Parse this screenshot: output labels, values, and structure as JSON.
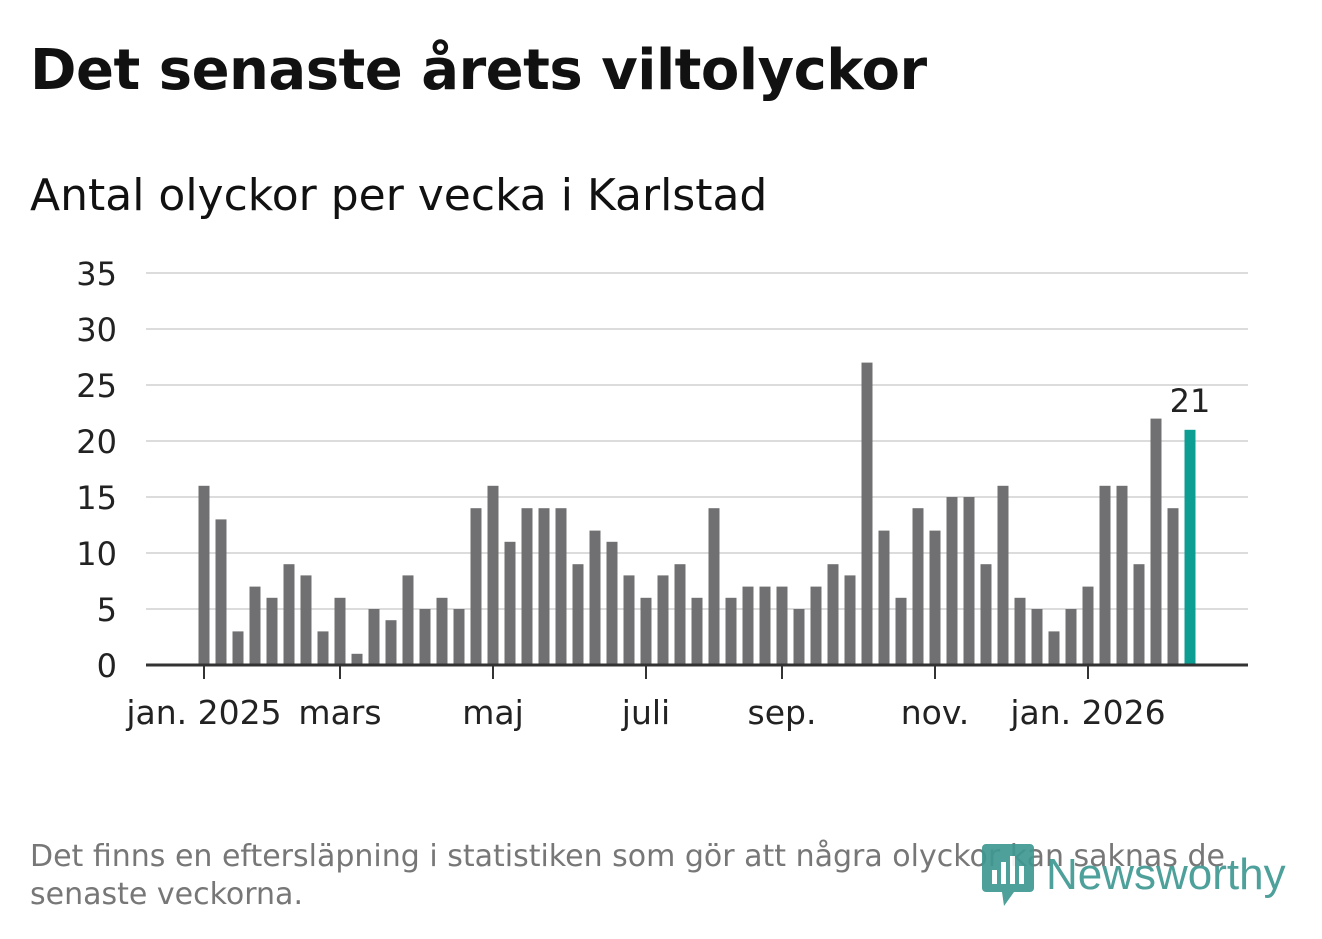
{
  "title": "Det senaste årets viltolyckor",
  "subtitle": "Antal olyckor per vecka i Karlstad",
  "footnote": "Det finns en eftersläpning i statistiken som gör att några olyckor kan saknas de senaste veckorna.",
  "logo": {
    "text": "Newsworthy",
    "color": "#3f9993"
  },
  "colors": {
    "bar": "#707072",
    "highlight": "#0d9e93",
    "grid": "#dcdcdc",
    "axis": "#333333",
    "text": "#222222"
  },
  "chart_data": {
    "type": "bar",
    "title": "Det senaste årets viltolyckor",
    "subtitle": "Antal olyckor per vecka i Karlstad",
    "xlabel": "",
    "ylabel": "",
    "ylim": [
      0,
      35
    ],
    "yticks": [
      0,
      5,
      10,
      15,
      20,
      25,
      30,
      35
    ],
    "grid": true,
    "xtick_labels": [
      {
        "label": "jan. 2025",
        "index": 0
      },
      {
        "label": "mars",
        "index": 8
      },
      {
        "label": "maj",
        "index": 17
      },
      {
        "label": "juli",
        "index": 26
      },
      {
        "label": "sep.",
        "index": 34
      },
      {
        "label": "nov.",
        "index": 43
      },
      {
        "label": "jan. 2026",
        "index": 52
      }
    ],
    "values": [
      16,
      13,
      3,
      7,
      6,
      9,
      8,
      3,
      6,
      1,
      5,
      4,
      8,
      5,
      6,
      5,
      14,
      16,
      11,
      14,
      14,
      14,
      9,
      12,
      11,
      8,
      6,
      8,
      9,
      6,
      14,
      6,
      7,
      7,
      7,
      5,
      7,
      9,
      8,
      27,
      12,
      6,
      14,
      12,
      15,
      15,
      9,
      16,
      6,
      5,
      3,
      5,
      7,
      16,
      16,
      9,
      22,
      14,
      21
    ],
    "highlight_index": 58,
    "highlight_label": "21"
  }
}
